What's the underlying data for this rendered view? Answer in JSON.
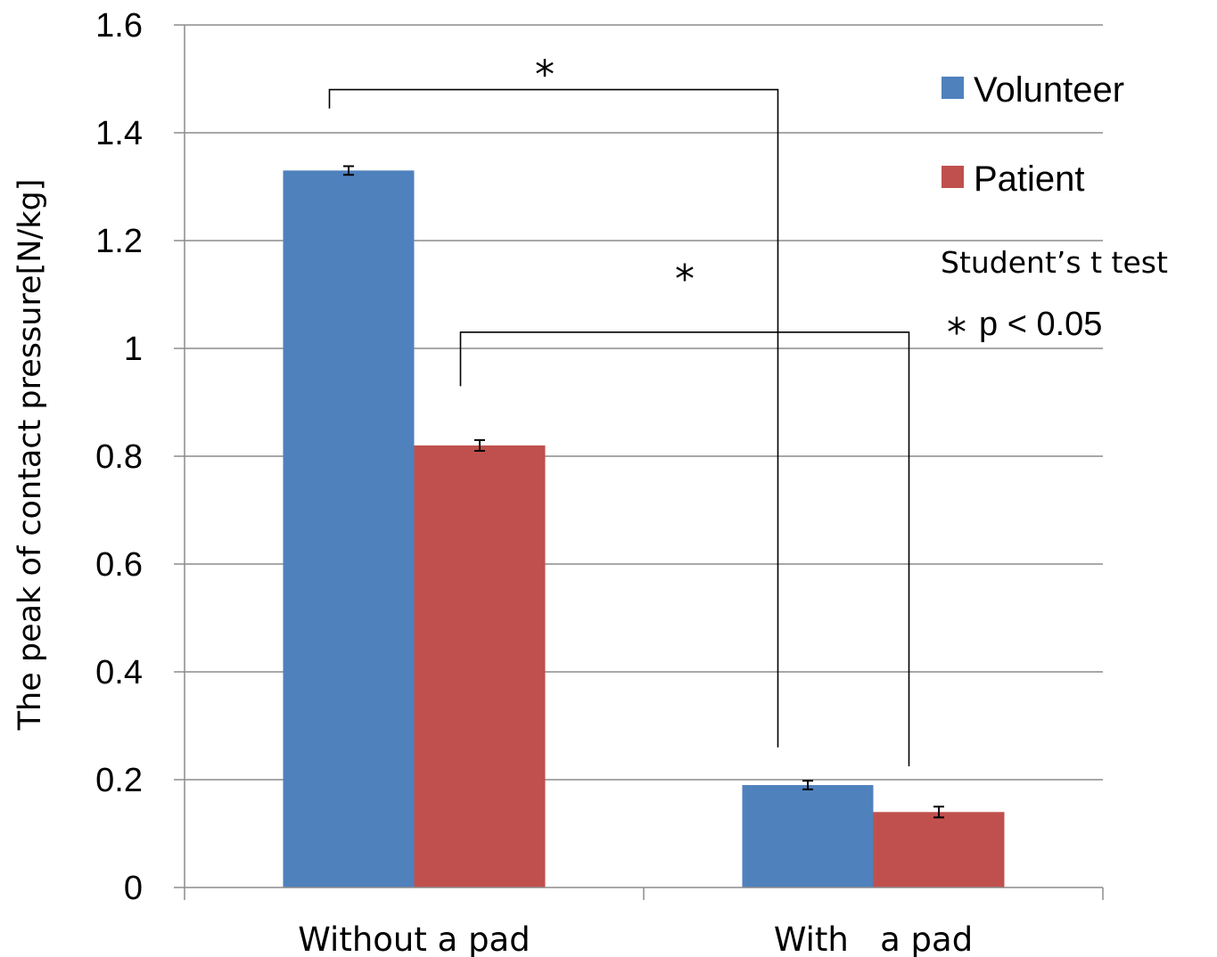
{
  "chart_data": {
    "type": "bar",
    "categories": [
      "Without a pad",
      "With   a pad"
    ],
    "series": [
      {
        "name": "Volunteer",
        "color": "#4f81bd",
        "values": [
          1.33,
          0.19
        ],
        "errors": [
          0.008,
          0.008
        ]
      },
      {
        "name": "Patient",
        "color": "#c0504d",
        "values": [
          0.82,
          0.14
        ],
        "errors": [
          0.01,
          0.01
        ]
      }
    ],
    "title": "",
    "xlabel": "",
    "ylabel": "The peak of contact pressure[N/kg]",
    "ylim": [
      0,
      1.6
    ],
    "yticks": [
      0,
      0.2,
      0.4,
      0.6,
      0.8,
      1,
      1.2,
      1.4,
      1.6
    ],
    "ytick_labels": [
      "0",
      "0.2",
      "0.4",
      "0.6",
      "0.8",
      "1",
      "1.2",
      "1.4",
      "1.6"
    ],
    "grid": true,
    "legend_position": "right",
    "annotations": {
      "star": "*",
      "test_name": "Student’s t  test",
      "p_note": "p < 0.05",
      "brackets": [
        {
          "from_series": "Volunteer",
          "compare": "Without a pad vs With a pad",
          "level": 1.48,
          "label": "*"
        },
        {
          "from_series": "Patient",
          "compare": "Without a pad vs With a pad",
          "level": 1.03,
          "label": "*"
        }
      ]
    }
  }
}
